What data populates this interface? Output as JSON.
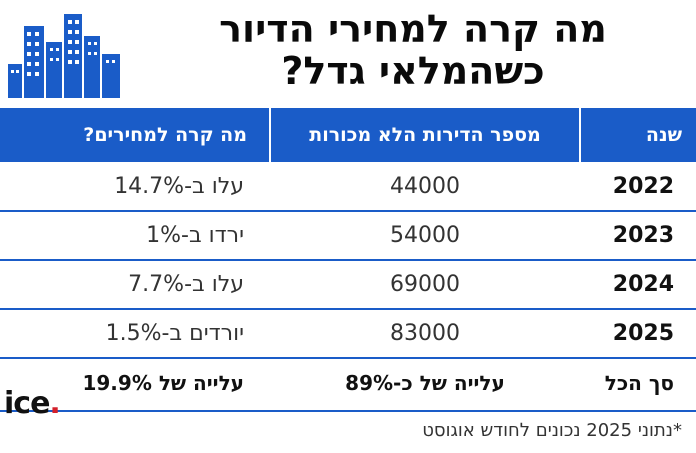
{
  "title_line1": "מה קרה למחירי הדיור",
  "title_line2": "כשהמלאי גדל?",
  "headers": {
    "year": "שנה",
    "unsold": "מספר הדירות הלא מכורות",
    "price_change": "מה קרה למחירים?"
  },
  "rows": [
    {
      "year": "2022",
      "unsold": "44000",
      "change": "עלו ב-14.7%"
    },
    {
      "year": "2023",
      "unsold": "54000",
      "change": "ירדו ב-1%"
    },
    {
      "year": "2024",
      "unsold": "69000",
      "change": "עלו ב-7.7%"
    },
    {
      "year": "2025",
      "unsold": "83000",
      "change": "יורדים ב-1.5%"
    }
  ],
  "total": {
    "label": "סך הכל",
    "unsold": "עלייה של כ-89%",
    "change": "עלייה של 19.9%"
  },
  "footnote": "*נתוני 2025 נכונים לחודש אוגוסט",
  "brand": {
    "name": "ice",
    "dot": "."
  },
  "colors": {
    "header_blue": "#1a5cc8",
    "brand_red": "#d4202a"
  },
  "icons": {
    "logo": "city-buildings-icon"
  }
}
